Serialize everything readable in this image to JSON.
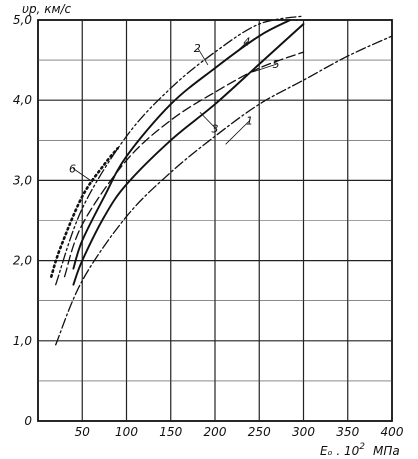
{
  "chart_data": {
    "type": "line",
    "title": "",
    "ylabel": "υp, км/с",
    "xlabel_main": "Eₒ . 10",
    "xlabel_exp": "2",
    "xlabel_unit": "МПа",
    "xlim": [
      0,
      400
    ],
    "ylim": [
      0,
      5.0
    ],
    "grid": true,
    "xticks": [
      0,
      50,
      100,
      150,
      200,
      250,
      300,
      350,
      400
    ],
    "yticks": [
      0,
      1.0,
      2.0,
      3.0,
      4.0,
      5.0
    ],
    "xtick_labels": [
      "0",
      "50",
      "100",
      "150",
      "200",
      "250",
      "300",
      "350",
      "400"
    ],
    "ytick_labels": [
      "0",
      "1,0",
      "2,0",
      "3,0",
      "4,0",
      "5,0"
    ],
    "series": [
      {
        "name": "1",
        "style": "dashdot",
        "x": [
          20,
          50,
          100,
          150,
          200,
          250,
          300,
          350,
          400
        ],
        "y": [
          0.95,
          1.75,
          2.55,
          3.1,
          3.55,
          3.95,
          4.25,
          4.55,
          4.8
        ]
      },
      {
        "name": "2",
        "style": "dashdotdot",
        "x": [
          20,
          50,
          100,
          150,
          200,
          250,
          300
        ],
        "y": [
          1.7,
          2.65,
          3.55,
          4.15,
          4.6,
          4.95,
          5.05
        ]
      },
      {
        "name": "3",
        "style": "solid",
        "x": [
          40,
          50,
          75,
          100,
          150,
          200,
          250,
          300
        ],
        "y": [
          1.7,
          2.0,
          2.55,
          2.95,
          3.5,
          3.95,
          4.45,
          4.95
        ]
      },
      {
        "name": "4",
        "style": "solid",
        "x": [
          40,
          50,
          75,
          100,
          150,
          200,
          250,
          285
        ],
        "y": [
          1.9,
          2.25,
          2.8,
          3.3,
          3.95,
          4.4,
          4.8,
          5.0
        ]
      },
      {
        "name": "5",
        "style": "dashed",
        "x": [
          30,
          50,
          100,
          150,
          200,
          250,
          300
        ],
        "y": [
          1.8,
          2.45,
          3.25,
          3.75,
          4.1,
          4.4,
          4.6
        ]
      },
      {
        "name": "6",
        "style": "dotted",
        "x": [
          15,
          25,
          50,
          75,
          90
        ],
        "y": [
          1.8,
          2.15,
          2.8,
          3.2,
          3.4
        ]
      }
    ]
  }
}
